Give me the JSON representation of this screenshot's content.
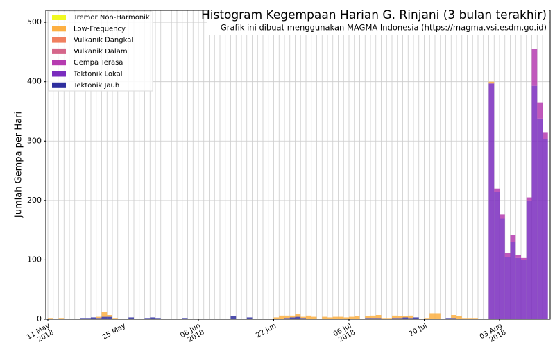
{
  "chart_data": {
    "type": "stacked_bar",
    "title": "Histogram Kegempaan Harian G. Rinjani (3 bulan terakhir)",
    "subtitle": "Grafik ini dibuat menggunakan MAGMA Indonesia (https://magma.vsi.esdm.go.id)",
    "y_label": "Jumlah Gempa per Hari",
    "legend": "upper left",
    "grid": true,
    "ylim": [
      0,
      520
    ],
    "yticks": [
      0,
      100,
      200,
      300,
      400,
      500
    ],
    "categories": [
      "11 May\n2018",
      null,
      null,
      null,
      null,
      null,
      null,
      null,
      null,
      null,
      null,
      null,
      null,
      null,
      "25 May",
      null,
      null,
      null,
      null,
      null,
      null,
      null,
      null,
      null,
      null,
      null,
      null,
      null,
      "08 Jun\n2018",
      null,
      null,
      null,
      null,
      null,
      null,
      null,
      null,
      null,
      null,
      null,
      null,
      null,
      "22 Jun",
      null,
      null,
      null,
      null,
      null,
      null,
      null,
      null,
      null,
      null,
      null,
      null,
      null,
      "06 Jul\n2018",
      null,
      null,
      null,
      null,
      null,
      null,
      null,
      null,
      null,
      null,
      null,
      null,
      null,
      "20 Jul",
      null,
      null,
      null,
      null,
      null,
      null,
      null,
      null,
      null,
      null,
      null,
      null,
      null,
      "03 Aug\n2018",
      null,
      null,
      null,
      null,
      null,
      null,
      null,
      null
    ],
    "series": [
      {
        "name": "Tremor Non-Harmonik",
        "color": "#f0f921",
        "values": [
          0,
          0,
          0,
          0,
          0,
          0,
          0,
          0,
          0,
          0,
          0,
          0,
          0,
          0,
          0,
          0,
          0,
          0,
          0,
          0,
          0,
          0,
          0,
          0,
          0,
          0,
          0,
          0,
          0,
          0,
          0,
          0,
          0,
          0,
          0,
          0,
          0,
          0,
          0,
          0,
          0,
          0,
          0,
          0,
          0,
          0,
          0,
          0,
          0,
          0,
          0,
          0,
          0,
          0,
          0,
          0,
          0,
          0,
          0,
          0,
          0,
          0,
          0,
          0,
          0,
          0,
          0,
          0,
          0,
          0,
          0,
          0,
          0,
          0,
          0,
          0,
          0,
          0,
          0,
          0,
          0,
          0,
          0,
          0,
          0,
          0,
          0,
          0,
          0,
          0,
          0,
          0,
          0
        ]
      },
      {
        "name": "Low-Frequency",
        "color": "#fdb042",
        "values": [
          2,
          1,
          2,
          1,
          0,
          0,
          0,
          0,
          0,
          2,
          8,
          3,
          1,
          0,
          0,
          0,
          0,
          0,
          0,
          0,
          0,
          0,
          0,
          0,
          0,
          0,
          0,
          1,
          0,
          0,
          0,
          0,
          0,
          0,
          0,
          0,
          0,
          0,
          0,
          0,
          0,
          1,
          3,
          6,
          4,
          3,
          5,
          2,
          5,
          3,
          0,
          3,
          2,
          3,
          3,
          3,
          4,
          5,
          0,
          3,
          4,
          5,
          2,
          1,
          4,
          3,
          2,
          4,
          0,
          0,
          2,
          10,
          10,
          0,
          0,
          5,
          4,
          2,
          2,
          2,
          1,
          0,
          3,
          0,
          0,
          0,
          0,
          0,
          0,
          0,
          0,
          0,
          0
        ]
      },
      {
        "name": "Vulkanik Dangkal",
        "color": "#f07f5f",
        "values": [
          0,
          0,
          0,
          0,
          0,
          0,
          0,
          0,
          0,
          0,
          0,
          0,
          0,
          0,
          0,
          0,
          0,
          0,
          0,
          0,
          0,
          0,
          0,
          0,
          0,
          0,
          0,
          0,
          0,
          0,
          0,
          0,
          0,
          0,
          0,
          0,
          0,
          0,
          0,
          0,
          0,
          0,
          0,
          0,
          0,
          0,
          0,
          0,
          0,
          0,
          0,
          0,
          0,
          0,
          0,
          0,
          0,
          0,
          0,
          0,
          0,
          0,
          0,
          0,
          0,
          0,
          0,
          0,
          0,
          0,
          0,
          0,
          0,
          0,
          0,
          0,
          0,
          0,
          0,
          0,
          0,
          0,
          0,
          0,
          0,
          0,
          0,
          0,
          0,
          0,
          0,
          0,
          0
        ]
      },
      {
        "name": "Vulkanik Dalam",
        "color": "#d5668a",
        "values": [
          0,
          0,
          0,
          0,
          0,
          0,
          0,
          0,
          0,
          0,
          0,
          0,
          0,
          0,
          0,
          0,
          0,
          0,
          0,
          0,
          0,
          0,
          0,
          0,
          0,
          0,
          0,
          0,
          0,
          0,
          0,
          0,
          0,
          0,
          0,
          0,
          0,
          0,
          0,
          0,
          0,
          0,
          0,
          0,
          0,
          0,
          0,
          0,
          0,
          0,
          0,
          0,
          0,
          0,
          0,
          0,
          0,
          0,
          0,
          0,
          0,
          0,
          0,
          0,
          0,
          0,
          0,
          0,
          0,
          0,
          0,
          0,
          0,
          0,
          0,
          0,
          0,
          0,
          0,
          0,
          0,
          0,
          0,
          0,
          0,
          0,
          0,
          0,
          0,
          0,
          0,
          0,
          0
        ]
      },
      {
        "name": "Gempa Terasa",
        "color": "#b53bb0",
        "values": [
          0,
          0,
          0,
          0,
          0,
          0,
          0,
          0,
          0,
          0,
          0,
          0,
          0,
          0,
          0,
          0,
          0,
          0,
          0,
          0,
          0,
          0,
          0,
          0,
          0,
          0,
          0,
          0,
          0,
          0,
          0,
          0,
          0,
          0,
          0,
          0,
          0,
          0,
          0,
          0,
          0,
          0,
          0,
          0,
          0,
          0,
          0,
          0,
          0,
          0,
          0,
          0,
          0,
          0,
          0,
          0,
          0,
          0,
          0,
          0,
          0,
          0,
          0,
          0,
          0,
          0,
          0,
          0,
          0,
          0,
          0,
          0,
          0,
          0,
          0,
          0,
          0,
          0,
          0,
          0,
          0,
          0,
          0,
          5,
          6,
          8,
          12,
          5,
          3,
          5,
          62,
          27,
          12
        ]
      },
      {
        "name": "Tektonik Lokal",
        "color": "#7a2cbe",
        "values": [
          0,
          0,
          0,
          0,
          0,
          0,
          0,
          0,
          0,
          0,
          0,
          0,
          0,
          0,
          0,
          0,
          0,
          0,
          0,
          0,
          0,
          0,
          0,
          0,
          0,
          0,
          0,
          0,
          0,
          0,
          0,
          0,
          0,
          0,
          0,
          0,
          0,
          0,
          0,
          0,
          0,
          0,
          0,
          0,
          0,
          0,
          0,
          0,
          0,
          0,
          0,
          0,
          0,
          0,
          0,
          0,
          0,
          0,
          0,
          0,
          0,
          0,
          0,
          0,
          0,
          0,
          0,
          0,
          0,
          0,
          0,
          0,
          0,
          0,
          0,
          0,
          0,
          0,
          0,
          0,
          0,
          0,
          397,
          215,
          170,
          104,
          130,
          103,
          100,
          200,
          393,
          338,
          303
        ]
      },
      {
        "name": "Tektonik Jauh",
        "color": "#2e2e9e",
        "values": [
          0,
          0,
          0,
          0,
          1,
          1,
          2,
          2,
          3,
          2,
          4,
          4,
          1,
          0,
          0,
          3,
          0,
          1,
          2,
          3,
          2,
          0,
          0,
          0,
          0,
          2,
          1,
          0,
          0,
          0,
          0,
          0,
          0,
          0,
          5,
          1,
          0,
          3,
          0,
          0,
          0,
          0,
          0,
          0,
          2,
          3,
          4,
          2,
          1,
          1,
          1,
          1,
          1,
          1,
          1,
          0,
          0,
          0,
          1,
          2,
          2,
          2,
          0,
          1,
          2,
          2,
          3,
          2,
          3,
          0,
          0,
          0,
          0,
          0,
          2,
          2,
          1,
          0,
          0,
          0,
          0,
          0,
          0,
          0,
          0,
          0,
          0,
          0,
          0,
          0,
          0,
          0,
          0
        ]
      }
    ]
  }
}
